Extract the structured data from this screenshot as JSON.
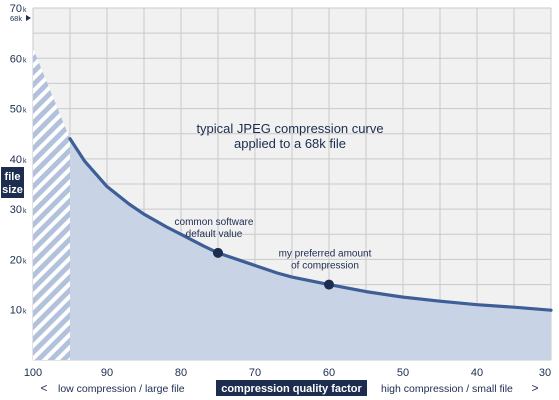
{
  "chart_data": {
    "type": "area",
    "title_lines": [
      "typical JPEG compression curve",
      "applied to a 68k file"
    ],
    "ylabel_lines": [
      "file",
      "size"
    ],
    "xlabel": "compression quality factor",
    "x_left_label": "low compression / large file",
    "x_right_label": "high compression / small file",
    "xlim": [
      100,
      30
    ],
    "ylim": [
      0,
      70
    ],
    "x_ticks": [
      {
        "value": 100,
        "label": "100"
      },
      {
        "value": 90,
        "label": "90"
      },
      {
        "value": 80,
        "label": "80"
      },
      {
        "value": 70,
        "label": "70"
      },
      {
        "value": 60,
        "label": "60"
      },
      {
        "value": 50,
        "label": "50"
      },
      {
        "value": 40,
        "label": "40"
      },
      {
        "value": 30,
        "label": "30"
      }
    ],
    "y_ticks": [
      {
        "value": 70,
        "label": "70k"
      },
      {
        "value": 60,
        "label": "60k"
      },
      {
        "value": 50,
        "label": "50k"
      },
      {
        "value": 40,
        "label": "40k"
      },
      {
        "value": 30,
        "label": "30k"
      },
      {
        "value": 20,
        "label": "20k"
      },
      {
        "value": 10,
        "label": "10k"
      }
    ],
    "reference_marker": {
      "value": 68,
      "label": "68k"
    },
    "grid": true,
    "hatched_range": {
      "x": [
        100,
        95
      ],
      "y_start": 62,
      "y_end": 44
    },
    "series": [
      {
        "points": [
          [
            95,
            44
          ],
          [
            93,
            39.5
          ],
          [
            90,
            34.5
          ],
          [
            87,
            31
          ],
          [
            85,
            29
          ],
          [
            82,
            26.5
          ],
          [
            80,
            25
          ],
          [
            77,
            22.7
          ],
          [
            75,
            21.3
          ],
          [
            72,
            19.8
          ],
          [
            70,
            18.8
          ],
          [
            67,
            17.3
          ],
          [
            65,
            16.5
          ],
          [
            62,
            15.6
          ],
          [
            60,
            15
          ],
          [
            55,
            13.6
          ],
          [
            50,
            12.5
          ],
          [
            45,
            11.7
          ],
          [
            40,
            11
          ],
          [
            35,
            10.5
          ],
          [
            30,
            9.9
          ]
        ]
      }
    ],
    "annotations": [
      {
        "x": 75,
        "y": 21.3,
        "lines": [
          "common software",
          "default value"
        ]
      },
      {
        "x": 60,
        "y": 15,
        "lines": [
          "my preferred amount",
          "of compression"
        ]
      }
    ],
    "colors": {
      "line": "#3d5e96",
      "fill": "#c8d4e6",
      "hatch": "#b3c2dc",
      "grid": "#c9c9c9",
      "panel_bg": "#f1f1f1",
      "text": "#1c2d4f",
      "label_box": "#1c2d4f",
      "marker": "#1c2d4f"
    }
  }
}
